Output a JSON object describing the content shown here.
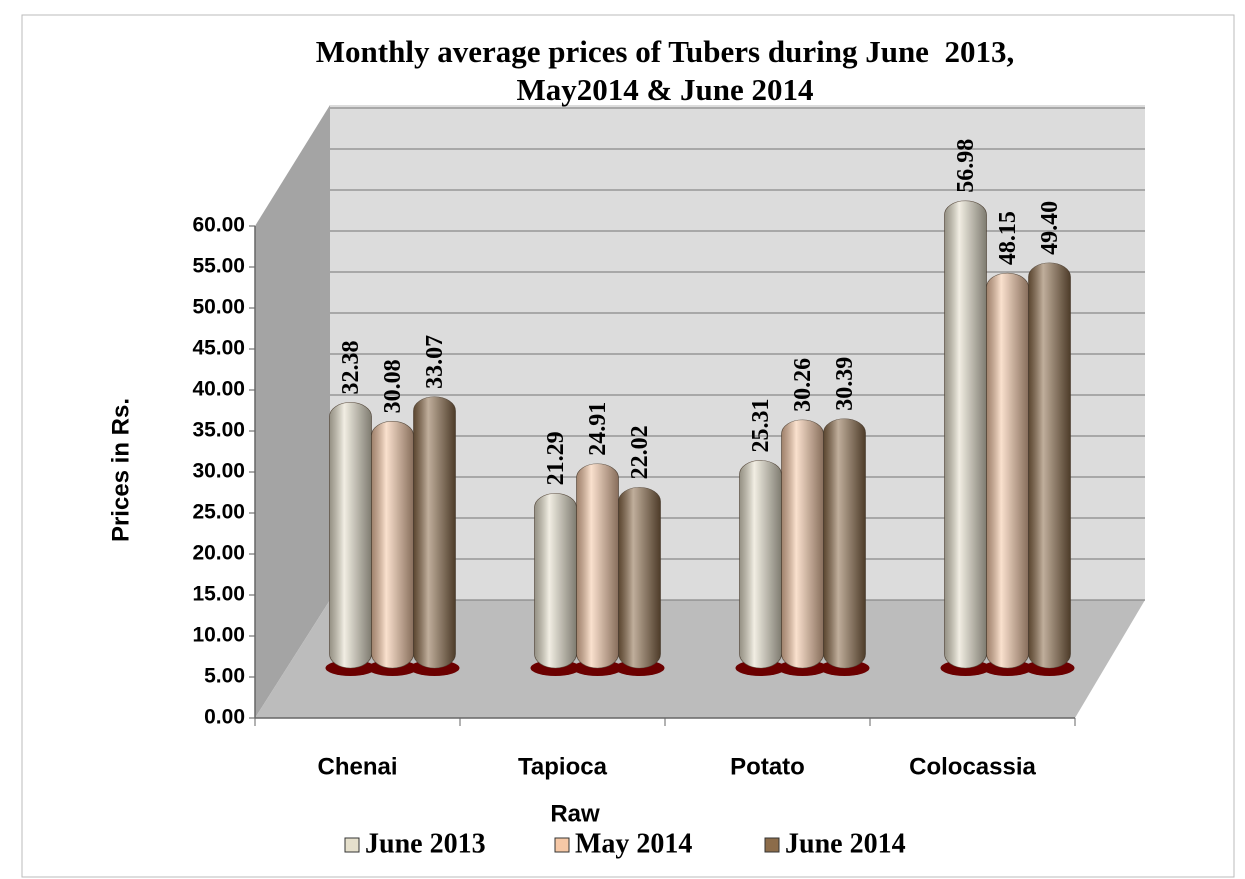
{
  "chart_data": {
    "type": "bar",
    "title": [
      "Monthly average prices of Tubers during June  2013,",
      "May2014 & June 2014"
    ],
    "x_label": "Raw",
    "y_label": "Prices in Rs.",
    "categories": [
      "Chenai",
      "Tapioca",
      "Potato",
      "Colocassia"
    ],
    "series": [
      {
        "name": "June 2013",
        "color": "#e6e0cc",
        "values": [
          32.38,
          21.29,
          25.31,
          56.98
        ],
        "value_labels": [
          "32.38",
          "21.29",
          "25.31",
          "56.98"
        ]
      },
      {
        "name": "May 2014",
        "color": "#f6c8a6",
        "values": [
          30.08,
          24.91,
          30.26,
          48.15
        ],
        "value_labels": [
          "30.08",
          "24.91",
          "30.26",
          "48.15"
        ]
      },
      {
        "name": "June 2014",
        "color": "#8c6c4a",
        "values": [
          33.07,
          22.02,
          30.39,
          49.4
        ],
        "value_labels": [
          "33.07",
          "22.02",
          "30.39",
          "49.40"
        ]
      }
    ],
    "ylim": [
      0,
      60
    ],
    "yticks": [
      {
        "value": 0,
        "label": "0.00"
      },
      {
        "value": 5,
        "label": "5.00"
      },
      {
        "value": 10,
        "label": "10.00"
      },
      {
        "value": 15,
        "label": "15.00"
      },
      {
        "value": 20,
        "label": "20.00"
      },
      {
        "value": 25,
        "label": "25.00"
      },
      {
        "value": 30,
        "label": "30.00"
      },
      {
        "value": 35,
        "label": "35.00"
      },
      {
        "value": 40,
        "label": "40.00"
      },
      {
        "value": 45,
        "label": "45.00"
      },
      {
        "value": 50,
        "label": "50.00"
      },
      {
        "value": 55,
        "label": "55.00"
      },
      {
        "value": 60,
        "label": "60.00"
      }
    ],
    "grid": true,
    "legend": "bottom"
  }
}
